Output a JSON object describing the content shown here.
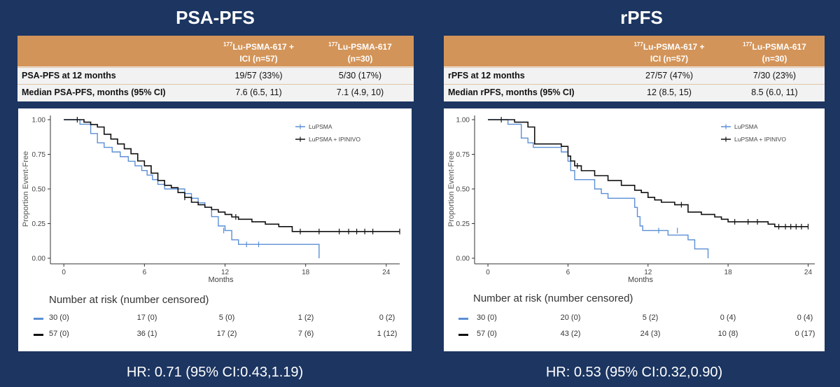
{
  "panels": [
    {
      "title": "PSA-PFS",
      "table": {
        "col1": {
          "sup": "177",
          "line1": "Lu-PSMA-617 +",
          "line2": "ICI (n=57)"
        },
        "col2": {
          "sup": "177",
          "line1": "Lu-PSMA-617",
          "line2": "(n=30)"
        },
        "rows": [
          {
            "label": "PSA-PFS at 12 months",
            "v1": "19/57 (33%)",
            "v2": "5/30 (17%)"
          },
          {
            "label": "Median PSA-PFS, months (95% CI)",
            "v1": "7.6 (6.5, 11)",
            "v2": "7.1 (4.9, 10)"
          }
        ]
      },
      "risk_title": "Number at risk (number censored)",
      "risk_rows": [
        {
          "color": "#5b8fd6",
          "values": [
            "30 (0)",
            "17 (0)",
            "5 (0)",
            "1 (2)",
            "0 (2)"
          ]
        },
        {
          "color": "#111111",
          "values": [
            "57 (0)",
            "36 (1)",
            "17 (2)",
            "7 (6)",
            "1 (12)"
          ]
        }
      ],
      "hr": "HR: 0.71 (95% CI:0.43,1.19)"
    },
    {
      "title": "rPFS",
      "table": {
        "col1": {
          "sup": "177",
          "line1": "Lu-PSMA-617 +",
          "line2": "ICI (n=57)"
        },
        "col2": {
          "sup": "177",
          "line1": "Lu-PSMA-617",
          "line2": "(n=30)"
        },
        "rows": [
          {
            "label": "rPFS at 12 months",
            "v1": "27/57 (47%)",
            "v2": "7/30 (23%)"
          },
          {
            "label": "Median rPFS, months (95% CI)",
            "v1": "12 (8.5, 15)",
            "v2": "8.5 (6.0, 11)"
          }
        ]
      },
      "risk_title": "Number at risk (number censored)",
      "risk_rows": [
        {
          "color": "#5b8fd6",
          "values": [
            "30 (0)",
            "20 (0)",
            "5 (2)",
            "0 (4)",
            "0 (4)"
          ]
        },
        {
          "color": "#111111",
          "values": [
            "57 (0)",
            "43 (2)",
            "24 (3)",
            "10 (8)",
            "0 (17)"
          ]
        }
      ],
      "hr": "HR: 0.53 (95% CI:0.32,0.90)"
    }
  ],
  "chart_data": [
    {
      "type": "line",
      "xlabel": "Months",
      "ylabel": "Proportion Event-Free",
      "xlim": [
        -1,
        25
      ],
      "ylim": [
        0,
        1.0
      ],
      "xticks": [
        0,
        6,
        12,
        18,
        24
      ],
      "yticks": [
        0.0,
        0.25,
        0.5,
        0.75,
        1.0
      ],
      "ytick_labels": [
        "0.00",
        "0.25",
        "0.50",
        "0.75",
        "1.00"
      ],
      "legend_position": "top-right",
      "series": [
        {
          "name": "LuPSMA",
          "color": "#5b8fd6",
          "x": [
            0,
            1.2,
            2.0,
            2.5,
            3.0,
            3.6,
            4.2,
            4.8,
            5.3,
            5.8,
            6.2,
            6.6,
            7.0,
            7.5,
            8.0,
            9.0,
            9.5,
            10.0,
            10.5,
            11.0,
            11.5,
            12.0,
            12.5,
            13.0,
            19.0,
            19.0
          ],
          "y": [
            1.0,
            0.967,
            0.9,
            0.833,
            0.8,
            0.767,
            0.733,
            0.7,
            0.667,
            0.633,
            0.6,
            0.567,
            0.533,
            0.5,
            0.5,
            0.467,
            0.433,
            0.4,
            0.367,
            0.3,
            0.233,
            0.2,
            0.133,
            0.1,
            0.1,
            0.0
          ],
          "censor": [
            [
              11.9,
              0.2
            ],
            [
              13.6,
              0.1
            ],
            [
              14.5,
              0.1
            ]
          ]
        },
        {
          "name": "LuPSMA + IPINIVO",
          "color": "#111111",
          "x": [
            0,
            1.5,
            2.0,
            2.5,
            3.0,
            3.5,
            4.0,
            4.5,
            5.0,
            5.5,
            6.0,
            6.5,
            7.0,
            7.5,
            8.0,
            8.5,
            9.0,
            9.5,
            10.0,
            10.5,
            11.0,
            11.5,
            12.0,
            12.5,
            13.0,
            14.0,
            15.0,
            16.0,
            17.0,
            25.0
          ],
          "y": [
            1.0,
            0.982,
            0.965,
            0.947,
            0.895,
            0.86,
            0.825,
            0.79,
            0.754,
            0.702,
            0.667,
            0.614,
            0.561,
            0.526,
            0.509,
            0.474,
            0.439,
            0.404,
            0.386,
            0.368,
            0.351,
            0.333,
            0.316,
            0.298,
            0.281,
            0.263,
            0.246,
            0.228,
            0.193,
            0.193
          ],
          "censor": [
            [
              1.0,
              1.0
            ],
            [
              9.0,
              0.439
            ],
            [
              12.8,
              0.298
            ],
            [
              17.6,
              0.193
            ],
            [
              19.0,
              0.193
            ],
            [
              20.5,
              0.193
            ],
            [
              21.2,
              0.193
            ],
            [
              21.8,
              0.193
            ],
            [
              22.4,
              0.193
            ],
            [
              23.0,
              0.193
            ],
            [
              25.0,
              0.193
            ]
          ]
        }
      ]
    },
    {
      "type": "line",
      "xlabel": "Months",
      "ylabel": "Proportion Event-Free",
      "xlim": [
        -1,
        24.5
      ],
      "ylim": [
        0,
        1.0
      ],
      "xticks": [
        0,
        6,
        12,
        18,
        24
      ],
      "yticks": [
        0.0,
        0.25,
        0.5,
        0.75,
        1.0
      ],
      "ytick_labels": [
        "0.00",
        "0.25",
        "0.50",
        "0.75",
        "1.00"
      ],
      "legend_position": "top-right",
      "series": [
        {
          "name": "LuPSMA",
          "color": "#5b8fd6",
          "x": [
            0,
            1.5,
            2.5,
            3.0,
            3.4,
            5.5,
            6.0,
            6.2,
            6.5,
            8.0,
            8.5,
            9.0,
            11.0,
            11.2,
            11.4,
            11.6,
            13.5,
            15.0,
            15.5,
            16.5,
            16.5
          ],
          "y": [
            1.0,
            0.967,
            0.867,
            0.833,
            0.8,
            0.767,
            0.7,
            0.633,
            0.567,
            0.5,
            0.467,
            0.433,
            0.367,
            0.3,
            0.233,
            0.2,
            0.167,
            0.133,
            0.067,
            0.033,
            0.0
          ],
          "censor": [
            [
              12.8,
              0.2
            ],
            [
              14.2,
              0.2
            ]
          ]
        },
        {
          "name": "LuPSMA + IPINIVO",
          "color": "#111111",
          "x": [
            0,
            2.0,
            3.0,
            3.5,
            5.5,
            6.0,
            6.2,
            6.5,
            7.0,
            8.0,
            9.0,
            10.0,
            11.0,
            11.5,
            12.0,
            12.5,
            13.0,
            14.0,
            15.0,
            16.0,
            17.0,
            17.5,
            18.0,
            21.0,
            21.5,
            24.0
          ],
          "y": [
            1.0,
            0.982,
            0.947,
            0.825,
            0.807,
            0.737,
            0.702,
            0.667,
            0.632,
            0.596,
            0.561,
            0.526,
            0.491,
            0.474,
            0.439,
            0.421,
            0.404,
            0.386,
            0.333,
            0.316,
            0.298,
            0.281,
            0.263,
            0.246,
            0.228,
            0.228
          ],
          "censor": [
            [
              1.0,
              1.0
            ],
            [
              6.7,
              0.667
            ],
            [
              14.5,
              0.386
            ],
            [
              18.5,
              0.263
            ],
            [
              19.5,
              0.263
            ],
            [
              20.2,
              0.263
            ],
            [
              21.8,
              0.228
            ],
            [
              22.3,
              0.228
            ],
            [
              22.7,
              0.228
            ],
            [
              23.1,
              0.228
            ],
            [
              23.5,
              0.228
            ],
            [
              24.0,
              0.228
            ]
          ]
        }
      ]
    }
  ]
}
